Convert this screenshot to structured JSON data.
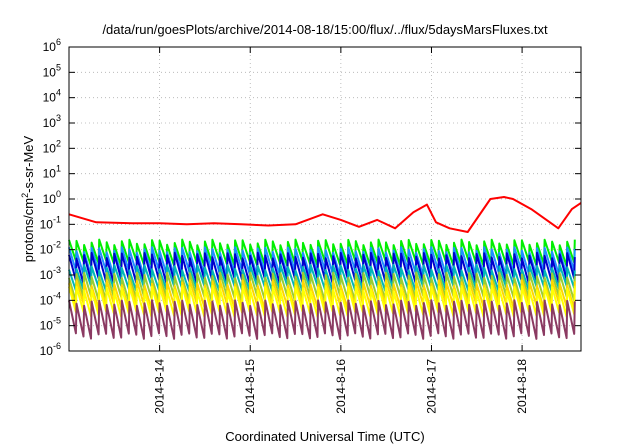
{
  "chart_data": {
    "type": "line",
    "title": "/data/run/goesPlots/archive/2014-08-18/15:00/flux/../flux/5daysMarsFluxes.txt",
    "xlabel": "Coordinated Universal Time (UTC)",
    "ylabel_parts": {
      "pre": "protons/cm",
      "sup": "2",
      "post": "-s-sr-MeV"
    },
    "yscale": "log",
    "ylim_exponents": [
      -6,
      6
    ],
    "y_tick_exponents": [
      -6,
      -5,
      -4,
      -3,
      -2,
      -1,
      0,
      1,
      2,
      3,
      4,
      5,
      6
    ],
    "y_tick_base": "10",
    "xlim_days": [
      13.0,
      18.65
    ],
    "x_ticks": [
      {
        "day": 14,
        "label": "2014-8-14"
      },
      {
        "day": 15,
        "label": "2014-8-15"
      },
      {
        "day": 16,
        "label": "2014-8-16"
      },
      {
        "day": 17,
        "label": "2014-8-17"
      },
      {
        "day": 18,
        "label": "2014-8-18"
      }
    ],
    "grid": true,
    "legend": "none",
    "sawtooth_period_days": 0.0833,
    "series": [
      {
        "color": "#ff0000",
        "points": [
          [
            13.0,
            0.25
          ],
          [
            13.3,
            0.12
          ],
          [
            13.7,
            0.11
          ],
          [
            14.0,
            0.11
          ],
          [
            14.3,
            0.1
          ],
          [
            14.6,
            0.11
          ],
          [
            14.9,
            0.1
          ],
          [
            15.2,
            0.09
          ],
          [
            15.5,
            0.1
          ],
          [
            15.8,
            0.25
          ],
          [
            16.0,
            0.15
          ],
          [
            16.2,
            0.08
          ],
          [
            16.4,
            0.15
          ],
          [
            16.6,
            0.07
          ],
          [
            16.8,
            0.3
          ],
          [
            16.95,
            0.6
          ],
          [
            17.05,
            0.12
          ],
          [
            17.2,
            0.07
          ],
          [
            17.4,
            0.05
          ],
          [
            17.65,
            1.0
          ],
          [
            17.8,
            1.2
          ],
          [
            17.9,
            1.0
          ],
          [
            18.1,
            0.4
          ],
          [
            18.4,
            0.07
          ],
          [
            18.55,
            0.4
          ],
          [
            18.65,
            0.7
          ]
        ]
      },
      {
        "color": "#00ee00",
        "low": 0.003,
        "high": 0.02
      },
      {
        "color": "#1e90ff",
        "low": 0.0012,
        "high": 0.01
      },
      {
        "color": "#0000cd",
        "low": 0.0006,
        "high": 0.006
      },
      {
        "color": "#00b8b8",
        "low": 0.0003,
        "high": 0.002
      },
      {
        "color": "#9acd32",
        "low": 0.00012,
        "high": 0.001
      },
      {
        "color": "#ffd700",
        "low": 6e-05,
        "high": 0.0005
      },
      {
        "color": "#ffff00",
        "low": 3e-05,
        "high": 0.0003
      },
      {
        "color": "#8b3a62",
        "low": 4e-06,
        "high": 8e-05
      }
    ]
  }
}
